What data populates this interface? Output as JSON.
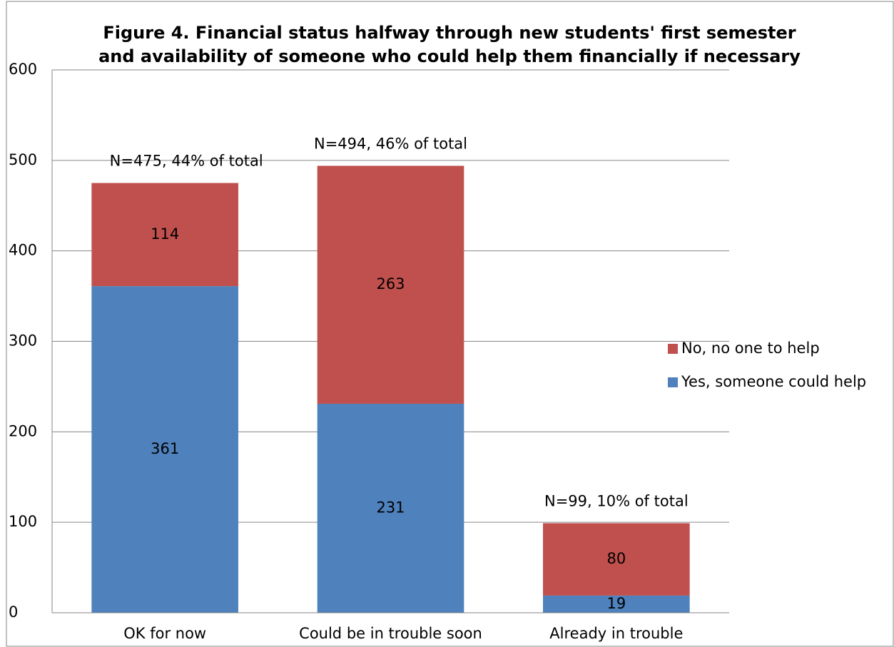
{
  "chart_data": {
    "type": "stacked_bar",
    "title": [
      "Figure 4. Financial status halfway through new students' first semester",
      "and availability of someone who could help them financially if necessary"
    ],
    "categories": [
      "OK for now",
      "Could be in trouble soon",
      "Already in trouble"
    ],
    "series": [
      {
        "name": "Yes, someone could help",
        "color": "#4f81bd",
        "values": [
          361,
          231,
          19
        ]
      },
      {
        "name": "No, no one to help",
        "color": "#c0504d",
        "values": [
          114,
          263,
          80
        ]
      }
    ],
    "annotations": [
      "N=475, 44% of total",
      "N=494, 46% of total",
      "N=99, 10% of total"
    ],
    "ylim": [
      0,
      600
    ],
    "yticks": [
      0,
      100,
      200,
      300,
      400,
      500,
      600
    ],
    "grid": true,
    "legend": "right"
  }
}
